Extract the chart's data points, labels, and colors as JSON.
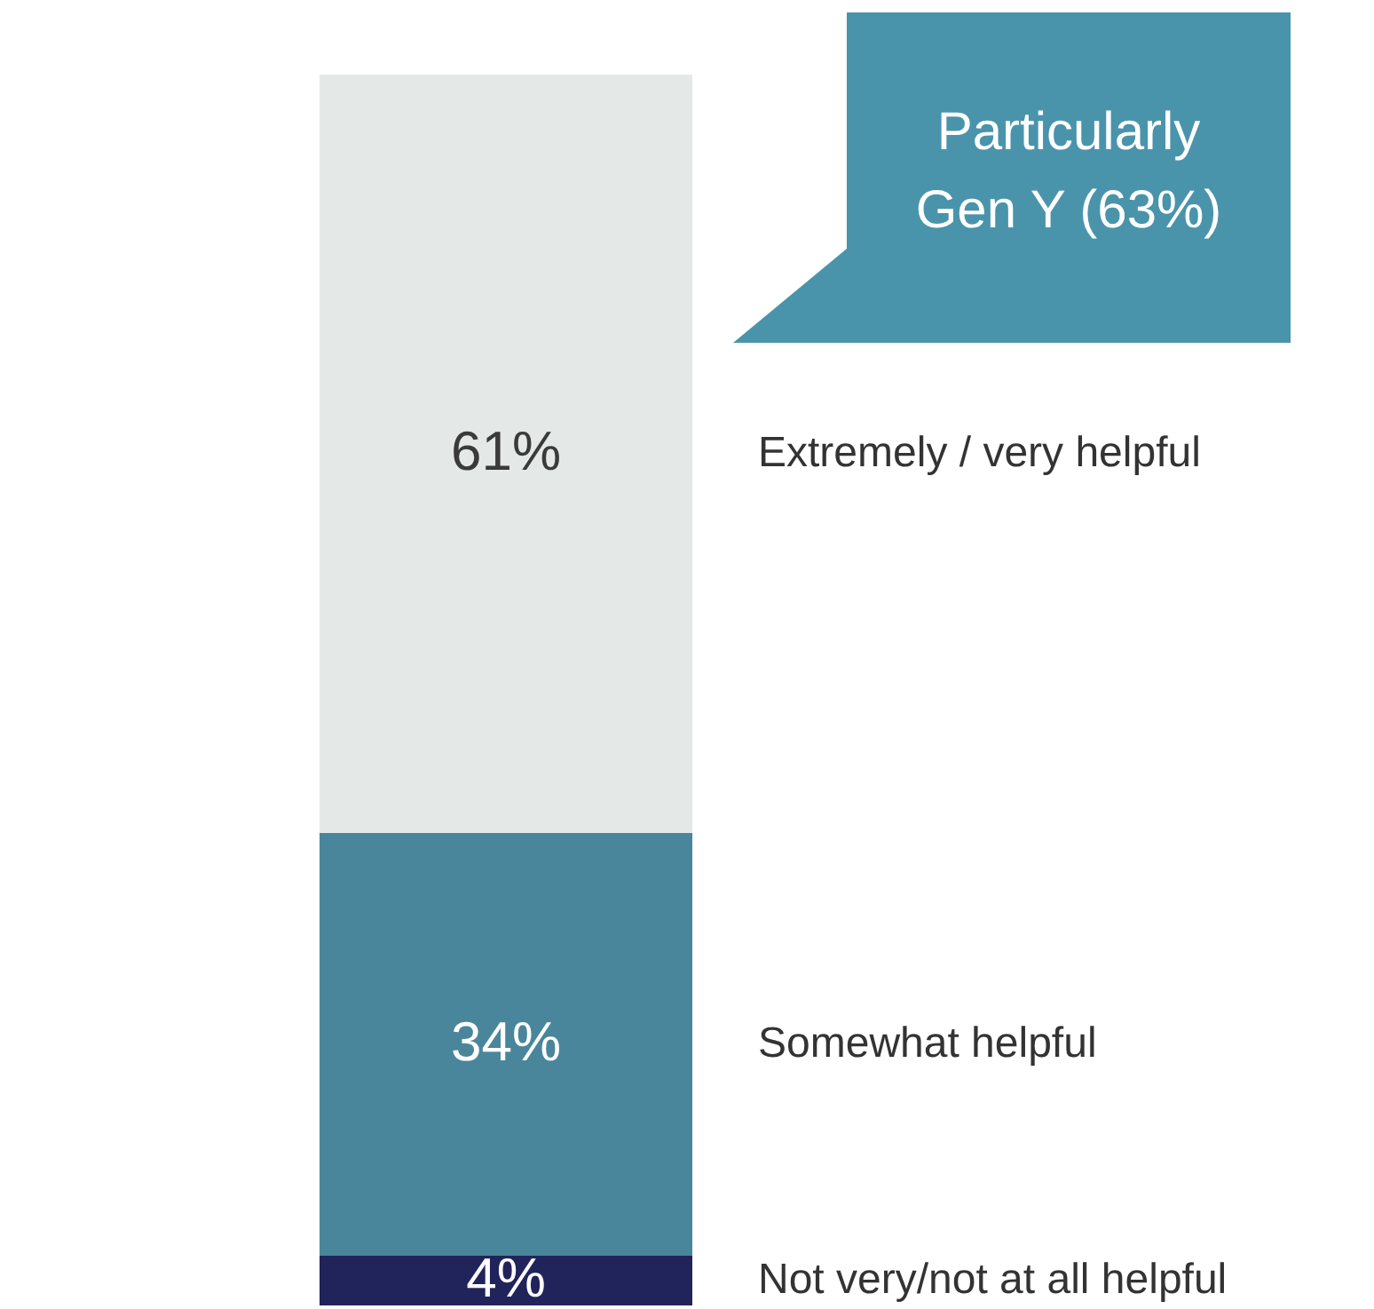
{
  "chart_data": {
    "type": "bar",
    "stacked": true,
    "data_labels": true,
    "legend": false,
    "categories": [
      null
    ],
    "series": [
      {
        "name": "Not very/not at all helpful",
        "color": "#21245a",
        "values": [
          4
        ],
        "value_labels": [
          "4%"
        ]
      },
      {
        "name": "Somewhat helpful",
        "color": "#4a869b",
        "values": [
          34
        ],
        "value_labels": [
          "34%"
        ]
      },
      {
        "name": "Extremely / very helpful",
        "color": "#e4e9e8",
        "values": [
          61
        ],
        "value_labels": [
          "61%"
        ]
      }
    ],
    "annotations": [
      "Particularly Gen Y (63%)"
    ]
  }
}
